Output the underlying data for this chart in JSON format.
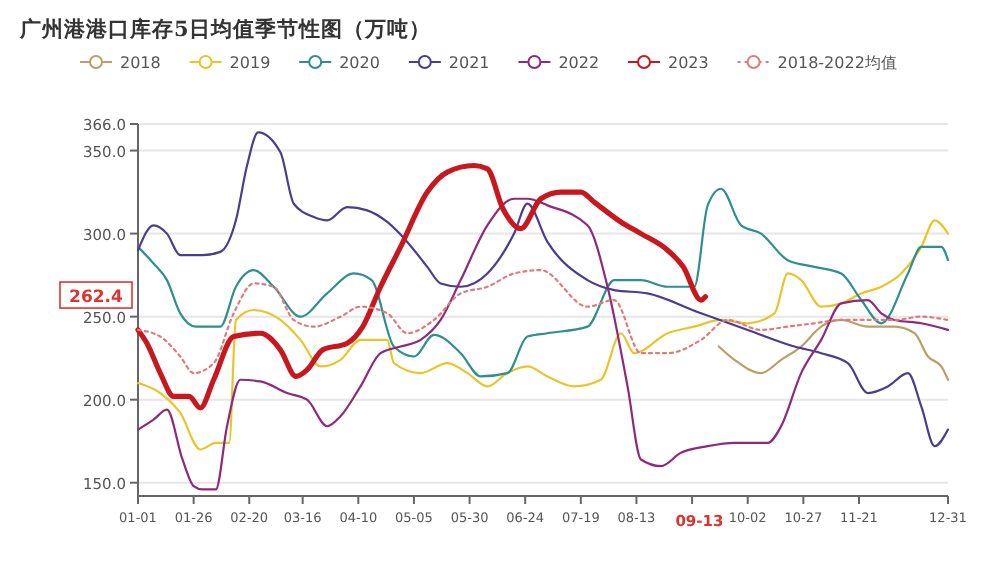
{
  "chart_data": {
    "type": "line",
    "title": "广州港港口库存5日均值季节性图（万吨）",
    "legend": "top",
    "grid": "y",
    "xlim": [
      "--01-01",
      "--12-31"
    ],
    "xticks": [
      {
        "value": "--01-01",
        "label": "01-01"
      },
      {
        "value": "--01-26",
        "label": "01-26"
      },
      {
        "value": "--02-20",
        "label": "02-20"
      },
      {
        "value": "--03-16",
        "label": "03-16"
      },
      {
        "value": "--04-10",
        "label": "04-10"
      },
      {
        "value": "--05-05",
        "label": "05-05"
      },
      {
        "value": "--05-30",
        "label": "05-30"
      },
      {
        "value": "--06-24",
        "label": "06-24"
      },
      {
        "value": "--07-19",
        "label": "07-19"
      },
      {
        "value": "--08-13",
        "label": "08-13"
      },
      {
        "value": "--09-07",
        "label": null
      },
      {
        "value": "--10-02",
        "label": "10-02"
      },
      {
        "value": "--10-27",
        "label": "10-27"
      },
      {
        "value": "--11-21",
        "label": "11-21"
      },
      {
        "value": "--12-31",
        "label": "12-31"
      }
    ],
    "ylim": [
      142,
      366
    ],
    "yticks": [
      {
        "value": 150,
        "label": "150.0"
      },
      {
        "value": 200,
        "label": "200.0"
      },
      {
        "value": 250,
        "label": "250.0"
      },
      {
        "value": 300,
        "label": "300.0"
      },
      {
        "value": 350,
        "label": "350.0"
      },
      {
        "value": 366,
        "label": "366.0"
      }
    ],
    "annotations": [
      "262.4",
      "09-13"
    ],
    "series": [
      {
        "name": "2018",
        "color": "#b9a06a",
        "x": [
          "--09-19",
          "--09-26",
          "--10-08",
          "--10-17",
          "--10-26",
          "--11-04",
          "--11-13",
          "--11-25",
          "--12-07",
          "--12-16",
          "--12-22",
          "--12-28",
          "--12-31"
        ],
        "values": [
          232,
          224,
          216,
          224,
          232,
          244,
          248,
          244,
          244,
          240,
          226,
          220,
          212
        ]
      },
      {
        "name": "2019",
        "color": "#e8c52a",
        "x": [
          "--01-01",
          "--01-11",
          "--01-20",
          "--01-29",
          "--02-05",
          "--02-11",
          "--02-14",
          "--02-22",
          "--03-06",
          "--03-15",
          "--03-24",
          "--04-02",
          "--04-11",
          "--04-23",
          "--04-26",
          "--05-08",
          "--05-20",
          "--05-29",
          "--06-07",
          "--06-16",
          "--06-25",
          "--07-04",
          "--07-16",
          "--07-28",
          "--08-06",
          "--08-12",
          "--08-27",
          "--09-08",
          "--09-20",
          "--10-02",
          "--10-14",
          "--10-20",
          "--10-26",
          "--11-04",
          "--11-13",
          "--11-22",
          "--12-01",
          "--12-10",
          "--12-19",
          "--12-25",
          "--12-31"
        ],
        "values": [
          210,
          204,
          192,
          170,
          174,
          174,
          248,
          254,
          248,
          236,
          220,
          224,
          236,
          236,
          222,
          216,
          222,
          216,
          208,
          216,
          220,
          214,
          208,
          212,
          240,
          228,
          240,
          244,
          248,
          246,
          252,
          276,
          272,
          256,
          258,
          264,
          268,
          276,
          292,
          308,
          300
        ]
      },
      {
        "name": "2020",
        "color": "#2f8f8f",
        "x": [
          "--01-01",
          "--01-08",
          "--01-14",
          "--01-20",
          "--01-27",
          "--02-07",
          "--02-14",
          "--02-22",
          "--03-03",
          "--03-15",
          "--03-27",
          "--04-08",
          "--04-16",
          "--04-26",
          "--05-05",
          "--05-14",
          "--05-26",
          "--06-04",
          "--06-16",
          "--06-25",
          "--07-04",
          "--07-22",
          "--08-03",
          "--08-15",
          "--08-27",
          "--09-08",
          "--09-14",
          "--09-20",
          "--09-29",
          "--10-08",
          "--10-20",
          "--11-01",
          "--11-13",
          "--11-22",
          "--12-01",
          "--12-13",
          "--12-19",
          "--12-28",
          "--12-31"
        ],
        "values": [
          292,
          282,
          272,
          252,
          244,
          244,
          268,
          278,
          268,
          250,
          264,
          276,
          272,
          232,
          226,
          239,
          228,
          214,
          216,
          238,
          240,
          244,
          272,
          272,
          268,
          268,
          317,
          327,
          305,
          300,
          284,
          280,
          276,
          260,
          246,
          276,
          292,
          292,
          284
        ]
      },
      {
        "name": "2021",
        "color": "#4b3c8e",
        "x": [
          "--01-01",
          "--01-08",
          "--01-14",
          "--01-20",
          "--01-26",
          "--01-30",
          "--02-07",
          "--02-14",
          "--02-19",
          "--02-24",
          "--03-06",
          "--03-12",
          "--03-21",
          "--03-27",
          "--04-05",
          "--04-14",
          "--04-23",
          "--05-02",
          "--05-11",
          "--05-17",
          "--05-26",
          "--06-07",
          "--06-19",
          "--06-25",
          "--07-04",
          "--07-22",
          "--08-03",
          "--08-18",
          "--09-11",
          "--10-02",
          "--10-23",
          "--11-04",
          "--11-16",
          "--11-25",
          "--12-04",
          "--12-13",
          "--12-19",
          "--12-25",
          "--12-31"
        ],
        "values": [
          290,
          305,
          300,
          287,
          287,
          287,
          289,
          308,
          341,
          361,
          349,
          318,
          310,
          308,
          316,
          314,
          307,
          295,
          280,
          270,
          268,
          276,
          300,
          318,
          295,
          272,
          266,
          264,
          252,
          242,
          232,
          228,
          222,
          204,
          208,
          216,
          196,
          172,
          182
        ]
      },
      {
        "name": "2022",
        "color": "#8e2a7e",
        "x": [
          "--01-01",
          "--01-08",
          "--01-14",
          "--01-21",
          "--01-26",
          "--01-30",
          "--02-05",
          "--02-10",
          "--02-16",
          "--02-25",
          "--03-09",
          "--03-18",
          "--03-27",
          "--04-02",
          "--04-11",
          "--04-20",
          "--04-29",
          "--05-08",
          "--05-17",
          "--05-26",
          "--06-07",
          "--06-19",
          "--06-25",
          "--07-04",
          "--07-22",
          "--07-31",
          "--08-09",
          "--08-15",
          "--08-24",
          "--09-02",
          "--09-14",
          "--09-26",
          "--10-11",
          "--10-17",
          "--10-26",
          "--11-04",
          "--11-13",
          "--11-25",
          "--12-01",
          "--12-07",
          "--12-19",
          "--12-31"
        ],
        "values": [
          182,
          188,
          194,
          164,
          148,
          146,
          146,
          184,
          212,
          211,
          204,
          200,
          184,
          190,
          208,
          228,
          232,
          236,
          248,
          272,
          305,
          321,
          321,
          317,
          305,
          268,
          208,
          164,
          160,
          168,
          172,
          174,
          174,
          184,
          216,
          236,
          258,
          260,
          252,
          248,
          246,
          242
        ]
      },
      {
        "name": "2023",
        "color": "#c8171e",
        "x": [
          "--01-01",
          "--01-05",
          "--01-11",
          "--01-17",
          "--01-24",
          "--01-29",
          "--02-04",
          "--02-13",
          "--02-25",
          "--03-06",
          "--03-13",
          "--03-18",
          "--03-25",
          "--04-05",
          "--04-12",
          "--04-20",
          "--04-29",
          "--05-11",
          "--05-20",
          "--06-01",
          "--06-07",
          "--06-14",
          "--06-22",
          "--07-01",
          "--07-10",
          "--07-19",
          "--07-25",
          "--08-06",
          "--08-15",
          "--08-27",
          "--09-03",
          "--09-11",
          "--09-13"
        ],
        "values": [
          242,
          234,
          216,
          202,
          202,
          195,
          212,
          238,
          240,
          230,
          214,
          218,
          230,
          234,
          244,
          268,
          292,
          325,
          337,
          341,
          339,
          315,
          303,
          321,
          325,
          325,
          319,
          307,
          300,
          290,
          280,
          260,
          262
        ]
      },
      {
        "name": "2018-2022均值",
        "color": "#e07b7b",
        "line_style": "dotted",
        "x": [
          "--01-01",
          "--01-11",
          "--01-20",
          "--01-26",
          "--02-04",
          "--02-13",
          "--02-22",
          "--03-03",
          "--03-12",
          "--03-21",
          "--04-02",
          "--04-11",
          "--04-23",
          "--05-02",
          "--05-14",
          "--05-26",
          "--06-07",
          "--06-19",
          "--07-01",
          "--07-22",
          "--08-03",
          "--08-15",
          "--08-27",
          "--09-11",
          "--09-23",
          "--10-08",
          "--10-20",
          "--11-01",
          "--11-13",
          "--11-25",
          "--12-07",
          "--12-19",
          "--12-31"
        ],
        "values": [
          242,
          238,
          226,
          216,
          222,
          252,
          270,
          268,
          248,
          244,
          250,
          256,
          252,
          240,
          248,
          264,
          268,
          276,
          278,
          256,
          260,
          228,
          228,
          236,
          248,
          242,
          244,
          246,
          248,
          248,
          248,
          250,
          248
        ]
      }
    ]
  }
}
